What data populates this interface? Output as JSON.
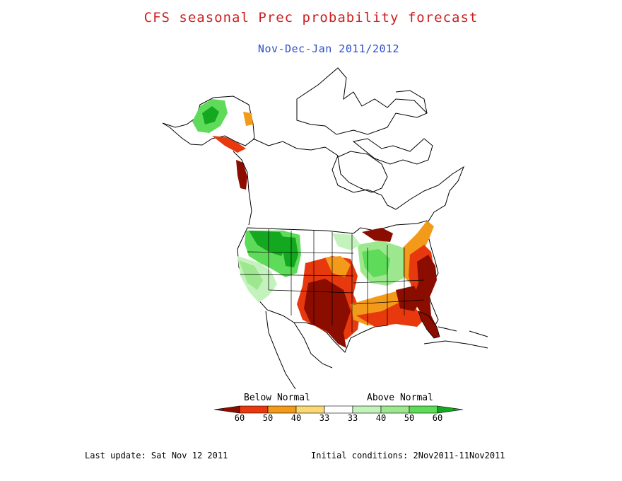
{
  "title": "CFS seasonal Prec probability forecast",
  "subtitle": "Nov-Dec-Jan 2011/2012",
  "legend": {
    "below_label": "Below Normal",
    "above_label": "Above Normal",
    "ticks": [
      "60",
      "50",
      "40",
      "33",
      "33",
      "40",
      "50",
      "60"
    ],
    "colors": {
      "below_60": "#8b0d00",
      "below_50": "#e8380d",
      "below_40": "#f39a1a",
      "below_33": "#fbd873",
      "normal": "#ffffff",
      "above_33": "#c4f2bd",
      "above_40": "#9de88f",
      "above_50": "#5fdb5a",
      "above_60": "#13a81f"
    }
  },
  "footer": {
    "last_update": "Last update: Sat Nov 12 2011",
    "initial_conditions": "Initial conditions: 2Nov2011-11Nov2011"
  }
}
